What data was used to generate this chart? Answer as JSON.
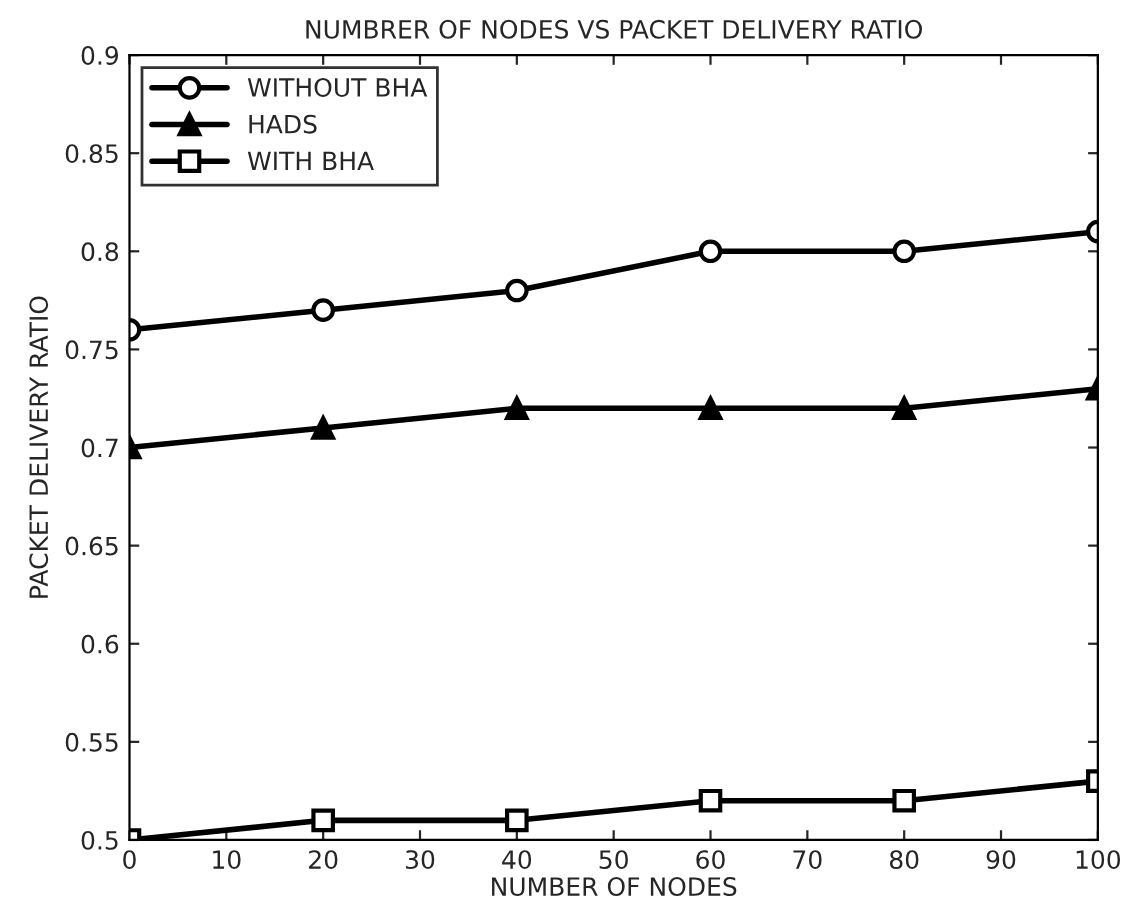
{
  "chart_data": {
    "type": "line",
    "title": "NUMBRER OF NODES VS PACKET DELIVERY RATIO",
    "xlabel": "NUMBER OF NODES",
    "ylabel": "PACKET DELIVERY RATIO",
    "x": [
      0,
      20,
      40,
      60,
      80,
      100
    ],
    "series": [
      {
        "name": "WITHOUT BHA",
        "color": "#000000",
        "marker": "circle",
        "values": [
          0.76,
          0.77,
          0.78,
          0.8,
          0.8,
          0.81
        ]
      },
      {
        "name": "HADS",
        "color": "#000000",
        "marker": "triangle",
        "values": [
          0.7,
          0.71,
          0.72,
          0.72,
          0.72,
          0.73
        ]
      },
      {
        "name": "WITH BHA",
        "color": "#000000",
        "marker": "square",
        "values": [
          0.5,
          0.51,
          0.51,
          0.52,
          0.52,
          0.53
        ]
      }
    ],
    "xlim": [
      0,
      100
    ],
    "xticks": [
      0,
      10,
      20,
      30,
      40,
      50,
      60,
      70,
      80,
      90,
      100
    ],
    "ylim": [
      0.5,
      0.9
    ],
    "yticks": [
      0.5,
      0.55,
      0.6,
      0.65,
      0.7,
      0.75,
      0.8,
      0.85,
      0.9
    ],
    "grid": false,
    "legend": "top left",
    "line_style": "solid"
  }
}
